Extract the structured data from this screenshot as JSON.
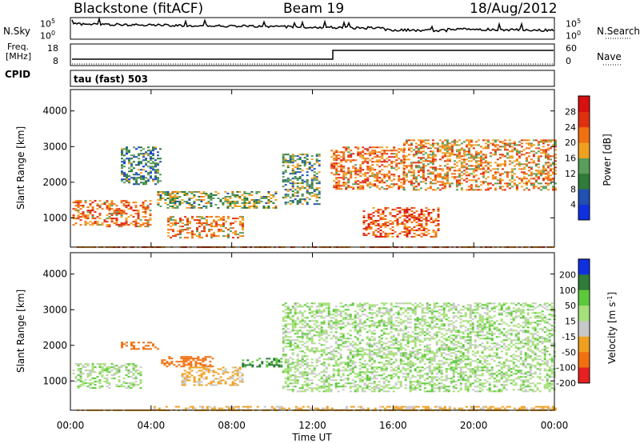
{
  "header": {
    "station": "Blackstone (fitACF)",
    "beam": "Beam 19",
    "date": "18/Aug/2012"
  },
  "noise_panel": {
    "left_label": "N.Sky",
    "right_label": "N.Search",
    "left_ticks": [
      "10^5",
      "10^0"
    ],
    "right_ticks": [
      "10^5",
      "10^0"
    ]
  },
  "freq_panel": {
    "left_label_1": "Freq.",
    "left_label_2": "[MHz]",
    "right_label": "Nave",
    "left_ticks": [
      "18",
      "8"
    ],
    "right_ticks": [
      "60",
      "0"
    ]
  },
  "cpid": {
    "label": "CPID",
    "value": "tau (fast) 503"
  },
  "x_axis": {
    "label": "Time UT",
    "ticks": [
      "00:00",
      "04:00",
      "08:00",
      "12:00",
      "16:00",
      "20:00",
      "00:00"
    ]
  },
  "chart_data": [
    {
      "type": "heatmap",
      "title": "",
      "xlabel": "",
      "ylabel": "Slant Range [km]",
      "xlim": [
        0,
        24
      ],
      "ylim": [
        180,
        4600
      ],
      "y_ticks": [
        1000,
        2000,
        3000,
        4000
      ],
      "colorbar": {
        "label": "Power [dB]",
        "ticks": [
          4,
          8,
          12,
          16,
          20,
          24,
          28
        ],
        "colors": [
          "#1030e0",
          "#2050b0",
          "#2e7b3a",
          "#5a9c5a",
          "#f0a020",
          "#f07010",
          "#e03010",
          "#d81010"
        ]
      },
      "regions": [
        {
          "t": [
            0.1,
            4.0
          ],
          "r": [
            780,
            1500
          ],
          "level": 22
        },
        {
          "t": [
            2.5,
            4.5
          ],
          "r": [
            1950,
            3000
          ],
          "level": 10
        },
        {
          "t": [
            4.3,
            10.2
          ],
          "r": [
            1300,
            1750
          ],
          "level": 14
        },
        {
          "t": [
            4.8,
            8.5
          ],
          "r": [
            450,
            1050
          ],
          "level": 20
        },
        {
          "t": [
            10.5,
            12.3
          ],
          "r": [
            1400,
            2800
          ],
          "level": 12
        },
        {
          "t": [
            12.9,
            16.5
          ],
          "r": [
            1800,
            3000
          ],
          "level": 22
        },
        {
          "t": [
            14.5,
            18.3
          ],
          "r": [
            450,
            1300
          ],
          "level": 24
        },
        {
          "t": [
            16.5,
            24.0
          ],
          "r": [
            1800,
            3200
          ],
          "level": 20
        }
      ]
    },
    {
      "type": "heatmap",
      "title": "",
      "xlabel": "Time UT",
      "ylabel": "Slant Range [km]",
      "xlim": [
        0,
        24
      ],
      "ylim": [
        180,
        4600
      ],
      "y_ticks": [
        1000,
        2000,
        3000,
        4000
      ],
      "colorbar": {
        "label": "Velocity [m s^-1]",
        "ticks": [
          200,
          100,
          50,
          15,
          -15,
          -50,
          -100,
          -200
        ],
        "colors": [
          "#1030e0",
          "#2e7b3a",
          "#5cc83a",
          "#a6e07a",
          "#c8c8c8",
          "#f0a020",
          "#f07010",
          "#e82020"
        ]
      },
      "regions": [
        {
          "t": [
            0.1,
            3.5
          ],
          "r": [
            800,
            1500
          ],
          "value": 0
        },
        {
          "t": [
            2.5,
            4.3
          ],
          "r": [
            1900,
            2100
          ],
          "value": -150
        },
        {
          "t": [
            4.5,
            7.0
          ],
          "r": [
            1400,
            1700
          ],
          "value": -150
        },
        {
          "t": [
            5.5,
            8.5
          ],
          "r": [
            900,
            1400
          ],
          "value": -60
        },
        {
          "t": [
            8.5,
            10.5
          ],
          "r": [
            1400,
            1650
          ],
          "value": 60
        },
        {
          "t": [
            10.5,
            24.0
          ],
          "r": [
            700,
            3200
          ],
          "value": 0
        },
        {
          "t": [
            4.0,
            24.0
          ],
          "r": [
            180,
            300
          ],
          "value": -60
        }
      ]
    }
  ]
}
